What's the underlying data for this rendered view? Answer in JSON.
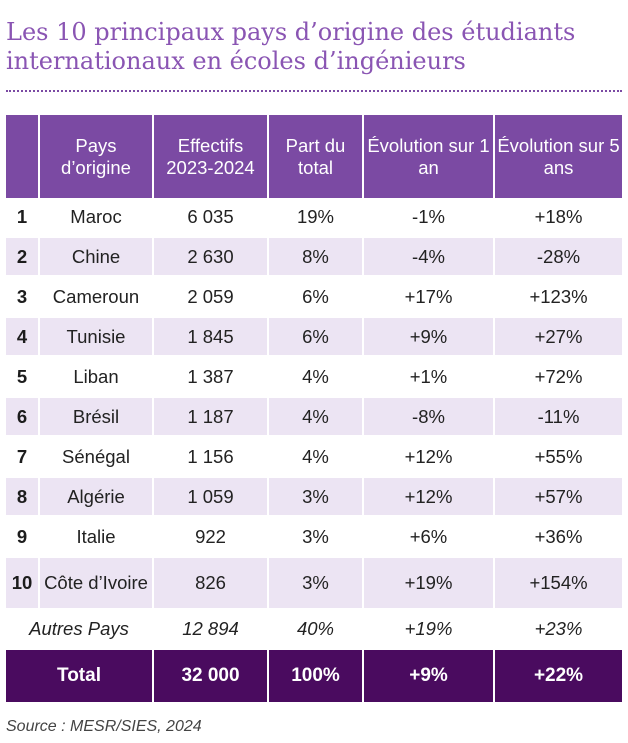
{
  "title": {
    "line1": "Les 10 principaux pays d’origine des étudiants",
    "line2": "internationaux en écoles d’ingénieurs"
  },
  "table": {
    "headers": [
      "",
      "Pays d’origine",
      "Effectifs 2023-2024",
      "Part du total",
      "Évolution sur 1 an",
      "Évolution sur 5 ans"
    ],
    "rows": [
      {
        "rank": "1",
        "country": "Maroc",
        "effectifs": "6 035",
        "part": "19%",
        "evo1": "-1%",
        "evo5": "+18%"
      },
      {
        "rank": "2",
        "country": "Chine",
        "effectifs": "2 630",
        "part": "8%",
        "evo1": "-4%",
        "evo5": "-28%"
      },
      {
        "rank": "3",
        "country": "Cameroun",
        "effectifs": "2 059",
        "part": "6%",
        "evo1": "+17%",
        "evo5": "+123%"
      },
      {
        "rank": "4",
        "country": "Tunisie",
        "effectifs": "1 845",
        "part": "6%",
        "evo1": "+9%",
        "evo5": "+27%"
      },
      {
        "rank": "5",
        "country": "Liban",
        "effectifs": "1 387",
        "part": "4%",
        "evo1": "+1%",
        "evo5": "+72%"
      },
      {
        "rank": "6",
        "country": "Brésil",
        "effectifs": "1 187",
        "part": "4%",
        "evo1": "-8%",
        "evo5": "-11%"
      },
      {
        "rank": "7",
        "country": "Sénégal",
        "effectifs": "1 156",
        "part": "4%",
        "evo1": "+12%",
        "evo5": "+55%"
      },
      {
        "rank": "8",
        "country": "Algérie",
        "effectifs": "1 059",
        "part": "3%",
        "evo1": "+12%",
        "evo5": "+57%"
      },
      {
        "rank": "9",
        "country": "Italie",
        "effectifs": "922",
        "part": "3%",
        "evo1": "+6%",
        "evo5": "+36%"
      },
      {
        "rank": "10",
        "country": "Côte d’Ivoire",
        "effectifs": "826",
        "part": "3%",
        "evo1": "+19%",
        "evo5": "+154%"
      }
    ],
    "autres": {
      "label": "Autres Pays",
      "effectifs": "12 894",
      "part": "40%",
      "evo1": "+19%",
      "evo5": "+23%"
    },
    "total": {
      "label": "Total",
      "effectifs": "32 000",
      "part": "100%",
      "evo1": "+9%",
      "evo5": "+22%"
    }
  },
  "source": "Source : MESR/SIES, 2024",
  "colors": {
    "title": "#8a55b3",
    "header_bg": "#7b4aa3",
    "row_alt_bg": "#ece4f3",
    "total_bg": "#4a0b5f"
  }
}
